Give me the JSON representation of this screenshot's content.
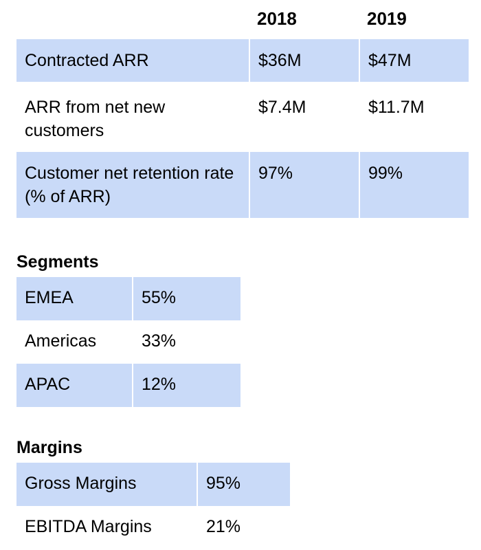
{
  "metrics": {
    "years": [
      "2018",
      "2019"
    ],
    "rows": [
      {
        "label": "Contracted ARR",
        "values": [
          "$36M",
          "$47M"
        ],
        "shaded": true
      },
      {
        "label": "ARR from net new customers",
        "values": [
          "$7.4M",
          "$11.7M"
        ],
        "shaded": false
      },
      {
        "label": "Customer net retention rate (% of ARR)",
        "values": [
          "97%",
          "99%"
        ],
        "shaded": true
      }
    ]
  },
  "segments": {
    "title": "Segments",
    "rows": [
      {
        "label": "EMEA",
        "value": "55%",
        "shaded": true
      },
      {
        "label": "Americas",
        "value": "33%",
        "shaded": false
      },
      {
        "label": "APAC",
        "value": "12%",
        "shaded": true
      }
    ]
  },
  "margins": {
    "title": "Margins",
    "rows": [
      {
        "label": "Gross Margins",
        "value": "95%",
        "shaded": true
      },
      {
        "label": "EBITDA Margins",
        "value": "21%",
        "shaded": false
      }
    ]
  },
  "colors": {
    "row_shade": "#c9daf8",
    "text": "#000000",
    "background": "#ffffff"
  }
}
